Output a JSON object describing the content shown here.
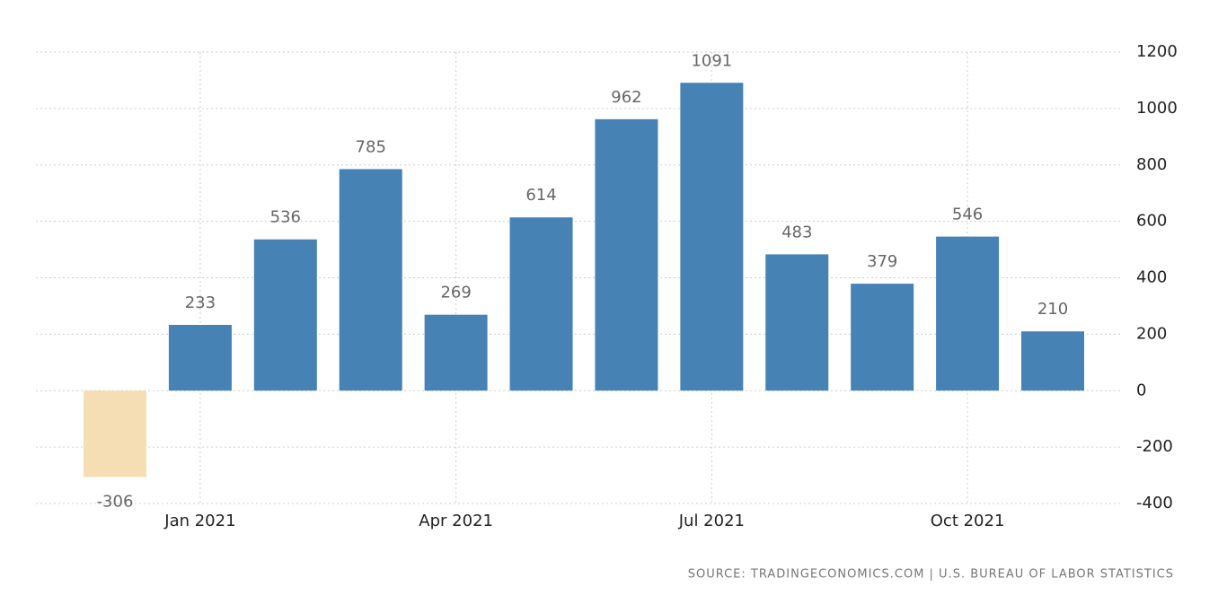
{
  "chart_data": {
    "type": "bar",
    "categories": [
      null,
      "Jan 2021",
      null,
      null,
      "Apr 2021",
      null,
      null,
      "Jul 2021",
      null,
      null,
      "Oct 2021",
      null
    ],
    "values": [
      -306,
      233,
      536,
      785,
      269,
      614,
      962,
      1091,
      483,
      379,
      546,
      210
    ],
    "color": "#4682b4",
    "negative_color": "#f5deb3",
    "ylim": [
      -400,
      1200
    ],
    "yticks": [
      -400,
      -200,
      0,
      200,
      400,
      600,
      800,
      1000,
      1200
    ],
    "grid": true,
    "y_axis_side": "right",
    "source": "SOURCE: TRADINGECONOMICS.COM | U.S. BUREAU OF LABOR STATISTICS"
  }
}
